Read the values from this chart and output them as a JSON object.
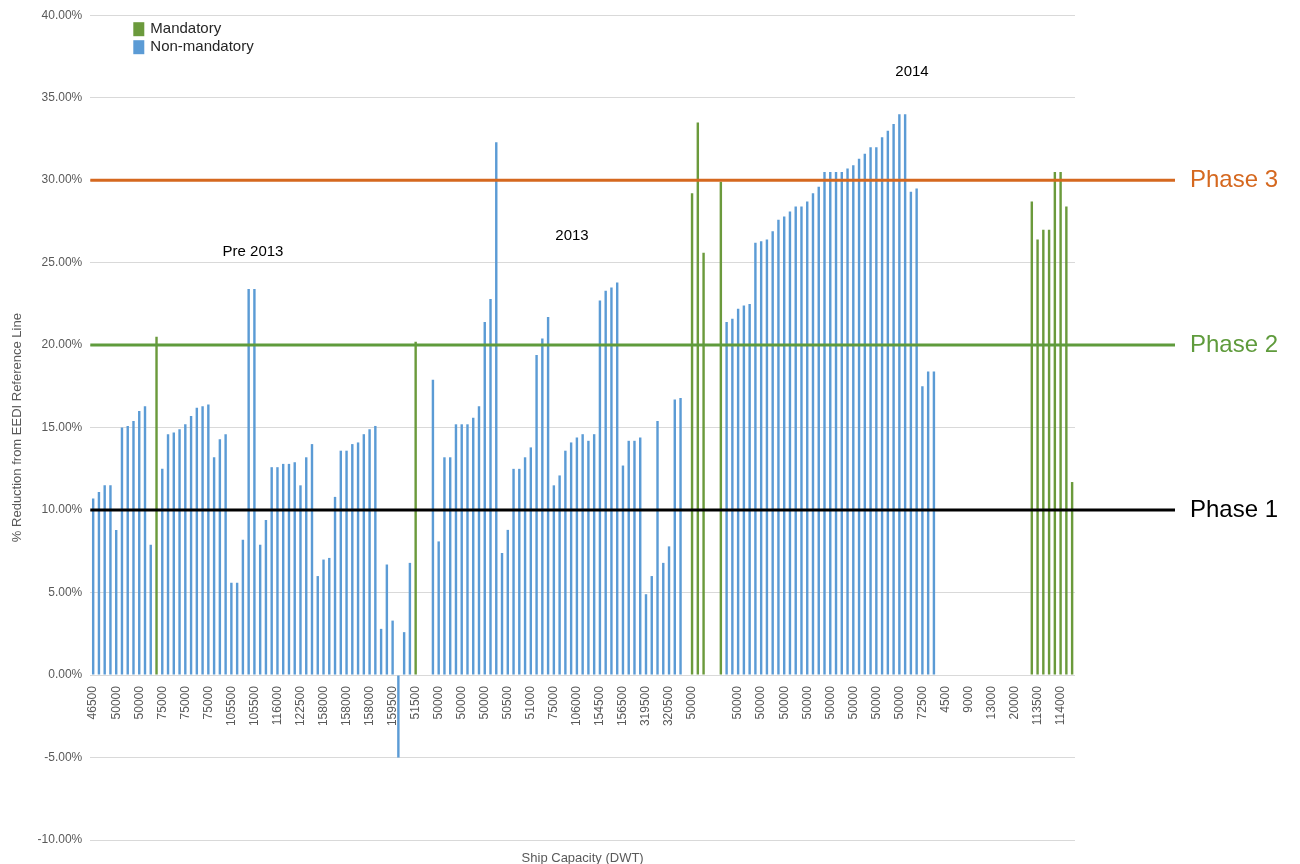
{
  "chart_data": {
    "type": "bar",
    "stacked": true,
    "xlabel": "Ship Capacity (DWT)",
    "ylabel": "% Reduction from EEDI Reference Line",
    "categories": [
      "46500",
      null,
      null,
      null,
      "50000",
      null,
      null,
      null,
      "50000",
      null,
      null,
      null,
      "75000",
      null,
      null,
      null,
      "75000",
      null,
      null,
      null,
      "75000",
      null,
      null,
      null,
      "105500",
      null,
      null,
      null,
      "105500",
      null,
      null,
      null,
      "116000",
      null,
      null,
      null,
      "122500",
      null,
      null,
      null,
      "158000",
      null,
      null,
      null,
      "158000",
      null,
      null,
      null,
      "158000",
      null,
      null,
      null,
      "159500",
      null,
      null,
      null,
      "51500",
      null,
      null,
      null,
      "50000",
      null,
      null,
      null,
      "50000",
      null,
      null,
      null,
      "50000",
      null,
      null,
      null,
      "50500",
      null,
      null,
      null,
      "51000",
      null,
      null,
      null,
      "75000",
      null,
      null,
      null,
      "106000",
      null,
      null,
      null,
      "154500",
      null,
      null,
      null,
      "156500",
      null,
      null,
      null,
      "319500",
      null,
      null,
      null,
      "320500",
      null,
      null,
      null,
      "50000",
      null,
      null,
      null,
      null,
      null,
      null,
      null,
      "50000",
      null,
      null,
      null,
      "50000",
      null,
      null,
      null,
      "50000",
      null,
      null,
      null,
      "50000",
      null,
      null,
      null,
      "50000",
      null,
      null,
      null,
      "50000",
      null,
      null,
      null,
      "50000",
      null,
      null,
      null,
      "50000",
      null,
      null,
      null,
      "72500",
      null,
      null,
      null,
      "4500",
      null,
      null,
      null,
      "9000",
      null,
      null,
      null,
      "13000",
      null,
      null,
      null,
      "20000",
      null,
      null,
      null,
      "113500",
      null,
      null,
      null,
      "114000",
      null,
      null
    ],
    "series": [
      {
        "name": "Mandatory",
        "color": "#6b9a3c",
        "values": [
          null,
          null,
          null,
          null,
          null,
          null,
          null,
          null,
          null,
          null,
          null,
          20.5,
          null,
          null,
          null,
          null,
          null,
          null,
          null,
          null,
          null,
          null,
          null,
          null,
          null,
          null,
          null,
          null,
          null,
          null,
          null,
          null,
          null,
          null,
          null,
          null,
          null,
          null,
          null,
          null,
          null,
          null,
          null,
          null,
          null,
          null,
          null,
          null,
          null,
          null,
          null,
          null,
          null,
          null,
          null,
          null,
          20.2,
          null,
          null,
          null,
          null,
          null,
          null,
          null,
          null,
          null,
          null,
          null,
          null,
          null,
          null,
          null,
          null,
          null,
          null,
          null,
          null,
          null,
          null,
          null,
          null,
          null,
          null,
          null,
          null,
          null,
          null,
          null,
          null,
          null,
          null,
          null,
          null,
          null,
          null,
          null,
          null,
          null,
          null,
          null,
          null,
          null,
          null,
          null,
          29.2,
          33.5,
          25.6,
          null,
          null,
          29.9,
          null,
          null,
          null,
          null,
          null,
          null,
          null,
          null,
          null,
          null,
          null,
          null,
          null,
          null,
          null,
          null,
          null,
          null,
          null,
          null,
          null,
          null,
          null,
          null,
          null,
          null,
          null,
          null,
          null,
          null,
          null,
          null,
          null,
          null,
          null,
          null,
          null,
          null,
          null,
          null,
          null,
          null,
          null,
          null,
          null,
          null,
          null,
          null,
          null,
          null,
          null,
          null,
          null,
          28.7,
          26.4,
          27.0,
          27.0,
          30.5,
          30.5,
          28.4,
          11.7
        ]
      },
      {
        "name": "Non-mandatory",
        "color": "#5b9bd5",
        "values": [
          10.7,
          11.1,
          11.5,
          11.5,
          8.8,
          15.0,
          15.1,
          15.4,
          16.0,
          16.3,
          7.9,
          null,
          12.5,
          14.6,
          14.7,
          14.9,
          15.2,
          15.7,
          16.2,
          16.3,
          16.4,
          13.2,
          14.3,
          14.6,
          5.6,
          5.6,
          8.2,
          23.4,
          23.4,
          7.9,
          9.4,
          12.6,
          12.6,
          12.8,
          12.8,
          12.9,
          11.5,
          13.2,
          14.0,
          6.0,
          7.0,
          7.1,
          10.8,
          13.6,
          13.6,
          14.0,
          14.1,
          14.6,
          14.9,
          15.1,
          2.8,
          6.7,
          3.3,
          -5.0,
          2.6,
          6.8,
          null,
          null,
          null,
          17.9,
          8.1,
          13.2,
          13.2,
          15.2,
          15.2,
          15.2,
          15.6,
          16.3,
          21.4,
          22.8,
          32.3,
          7.4,
          8.8,
          12.5,
          12.5,
          13.2,
          13.8,
          19.4,
          20.4,
          21.7,
          11.5,
          12.1,
          13.6,
          14.1,
          14.4,
          14.6,
          14.2,
          14.6,
          22.7,
          23.3,
          23.5,
          23.8,
          12.7,
          14.2,
          14.2,
          14.4,
          4.9,
          6.0,
          15.4,
          6.8,
          7.8,
          16.7,
          16.8,
          null,
          null,
          null,
          null,
          null,
          null,
          null,
          21.4,
          21.6,
          22.2,
          22.4,
          22.5,
          26.2,
          26.3,
          26.4,
          26.9,
          27.6,
          27.8,
          28.1,
          28.4,
          28.4,
          28.7,
          29.2,
          29.6,
          30.5,
          30.5,
          30.5,
          30.5,
          30.7,
          30.9,
          31.3,
          31.6,
          32.0,
          32.0,
          32.6,
          33.0,
          33.4,
          34.0,
          34.0,
          29.3,
          29.5,
          17.5,
          18.4,
          18.4,
          null,
          null,
          null,
          null,
          null,
          null,
          null,
          null,
          null,
          null,
          null,
          null,
          null,
          null,
          null,
          null,
          null,
          null,
          null,
          null,
          null,
          null,
          null,
          null
        ]
      }
    ],
    "ylim": [
      -10,
      40
    ],
    "yticks": [
      {
        "value": -10,
        "label": "-10.00%"
      },
      {
        "value": -5,
        "label": "-5.00%"
      },
      {
        "value": 0,
        "label": "0.00%"
      },
      {
        "value": 5,
        "label": "5.00%"
      },
      {
        "value": 10,
        "label": "10.00%"
      },
      {
        "value": 15,
        "label": "15.00%"
      },
      {
        "value": 20,
        "label": "20.00%"
      },
      {
        "value": 25,
        "label": "25.00%"
      },
      {
        "value": 30,
        "label": "30.00%"
      },
      {
        "value": 35,
        "label": "35.00%"
      },
      {
        "value": 40,
        "label": "40.00%"
      }
    ],
    "ref_lines": [
      {
        "axis": "y",
        "value": 30,
        "label": "Phase 3",
        "color": "#d5681f"
      },
      {
        "axis": "y",
        "value": 20,
        "label": "Phase 2",
        "color": "#5f9b3c"
      },
      {
        "axis": "y",
        "value": 10,
        "label": "Phase 1",
        "color": "#000000"
      }
    ],
    "annotations": [
      "Pre 2013",
      "2013",
      "2014"
    ],
    "grid": "y",
    "legend": "top left"
  }
}
